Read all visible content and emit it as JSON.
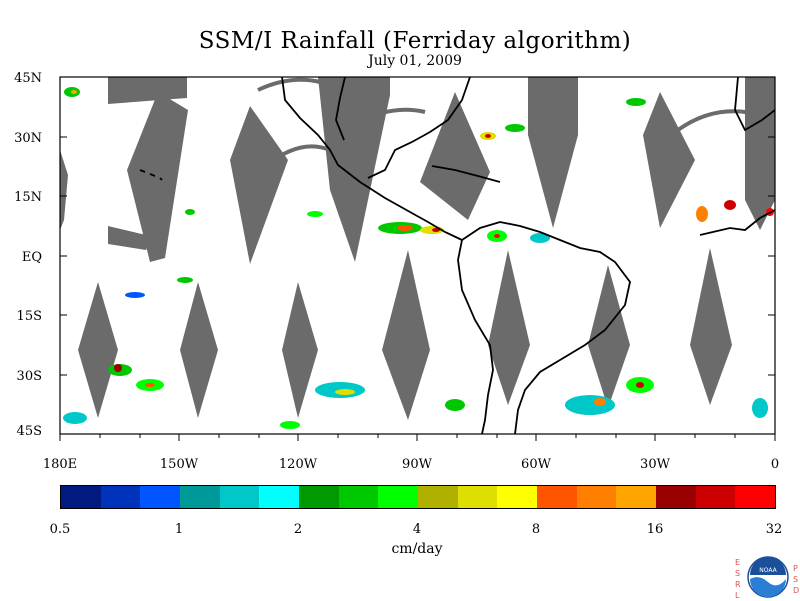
{
  "title": "SSM/I Rainfall (Ferriday algorithm)",
  "date": "July 01, 2009",
  "lat_labels": [
    "45N",
    "30N",
    "15N",
    "EQ",
    "15S",
    "30S",
    "45S"
  ],
  "lon_labels": [
    "180E",
    "150W",
    "120W",
    "90W",
    "60W",
    "30W",
    "0"
  ],
  "colorbar": {
    "colors": [
      "#001a80",
      "#0033bb",
      "#0055ff",
      "#00999a",
      "#00c8c8",
      "#00ffff",
      "#009900",
      "#00c800",
      "#00ff00",
      "#b0b000",
      "#dede00",
      "#ffff00",
      "#ff5500",
      "#ff8000",
      "#ffa500",
      "#990000",
      "#cc0000",
      "#ff0000"
    ],
    "tick_labels": [
      "0.5",
      "1",
      "2",
      "4",
      "8",
      "16",
      "32"
    ],
    "units": "cm/day"
  },
  "logo": {
    "left_letters": [
      "E",
      "S",
      "R",
      "L"
    ],
    "right_letters": [
      "P",
      "S",
      "D"
    ],
    "text": "NOAA"
  }
}
